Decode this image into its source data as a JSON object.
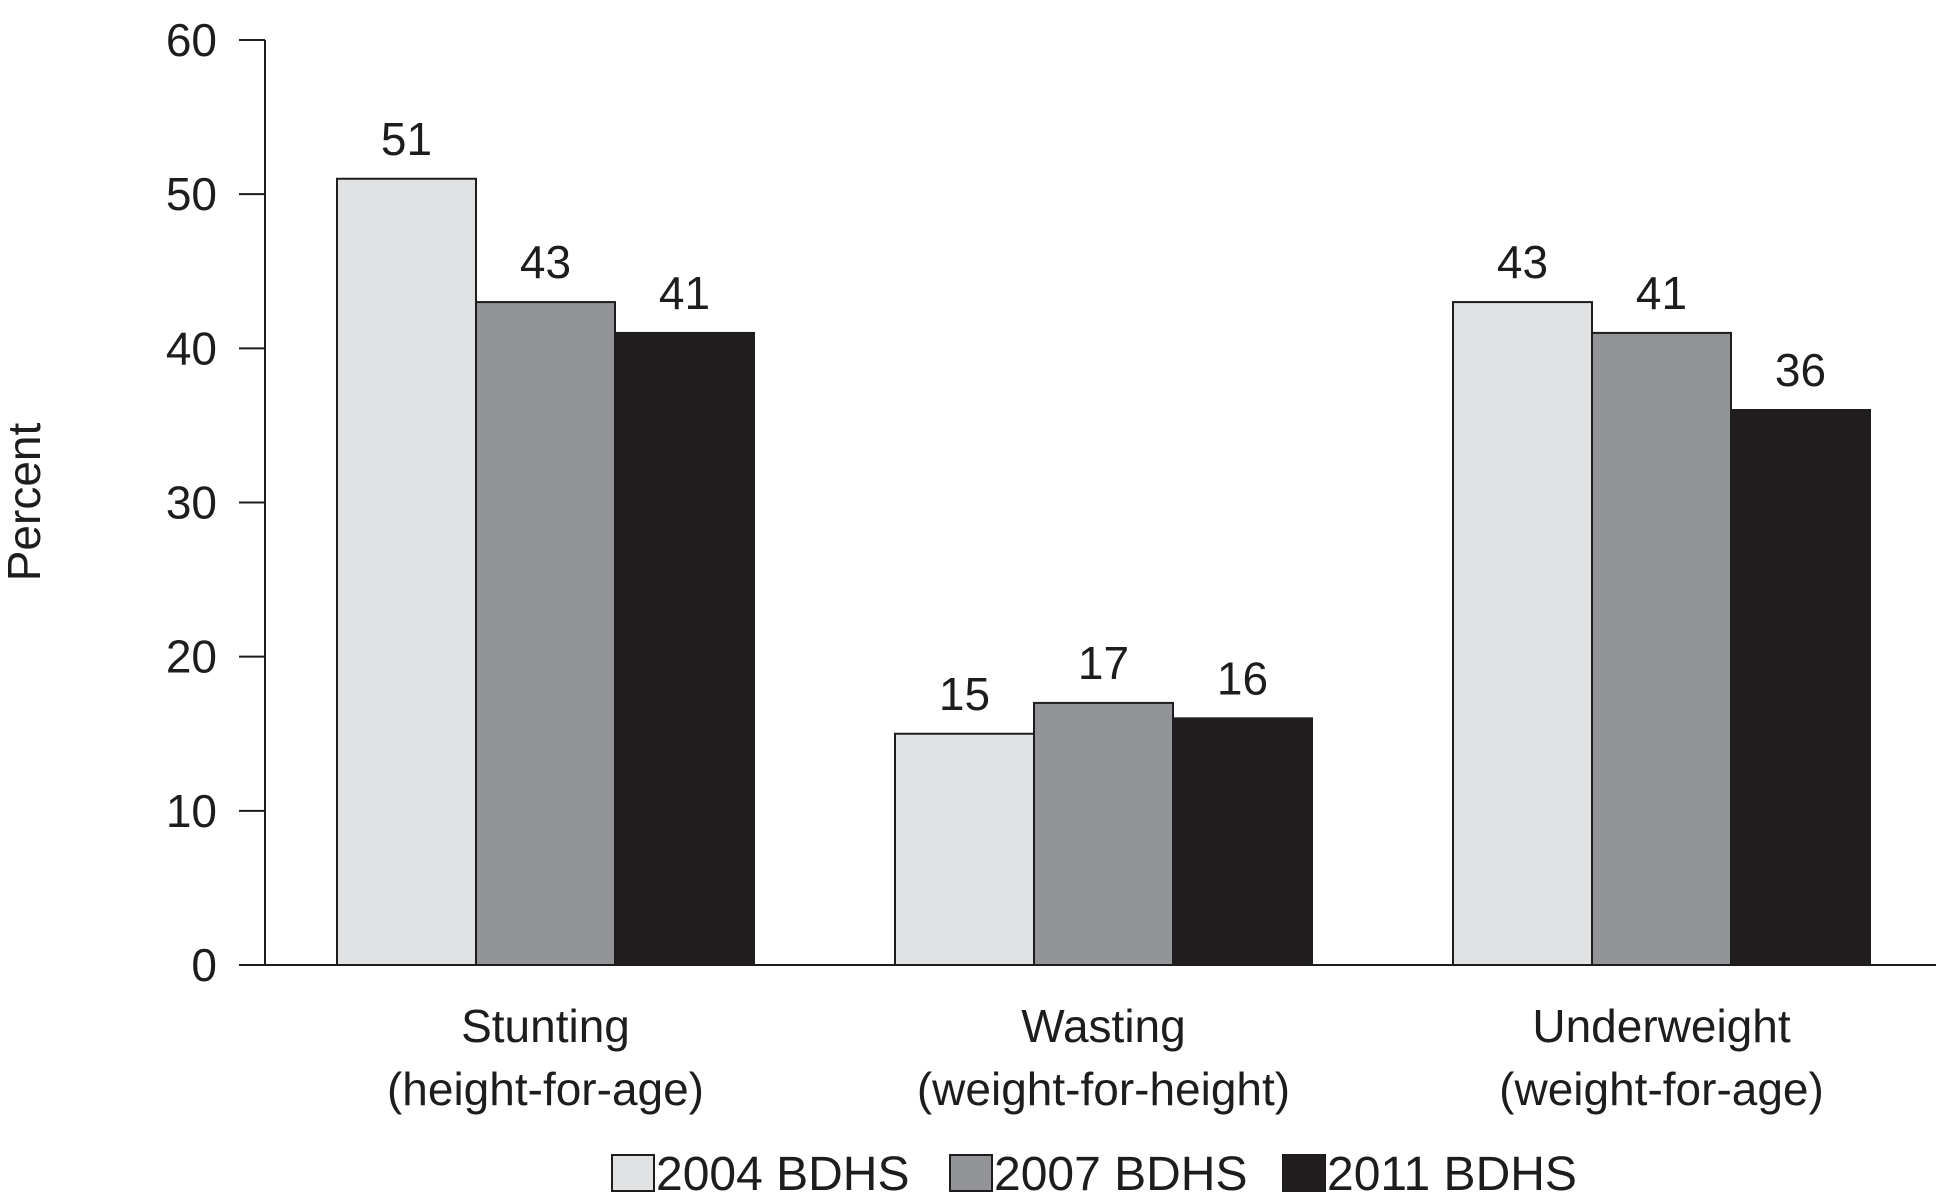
{
  "chart_data": {
    "type": "bar",
    "title": "",
    "ylabel": "Percent",
    "xlabel": "",
    "ylim": [
      0,
      60
    ],
    "yticks": [
      "0",
      "10",
      "20",
      "30",
      "40",
      "50",
      "60"
    ],
    "categories": [
      [
        "Stunting",
        "(height-for-age)"
      ],
      [
        "Wasting",
        "(weight-for-height)"
      ],
      [
        "Underweight",
        "(weight-for-age)"
      ]
    ],
    "series": [
      {
        "name": "2004 BDHS",
        "color": "#e1e2e4",
        "values": [
          51,
          15,
          43
        ]
      },
      {
        "name": "2007 BDHS",
        "color": "#939497",
        "values": [
          43,
          17,
          41
        ]
      },
      {
        "name": "2011 BDHS",
        "color": "#221e1f",
        "values": [
          41,
          16,
          36
        ]
      }
    ],
    "legend_position": "bottom-center",
    "grid": false
  }
}
